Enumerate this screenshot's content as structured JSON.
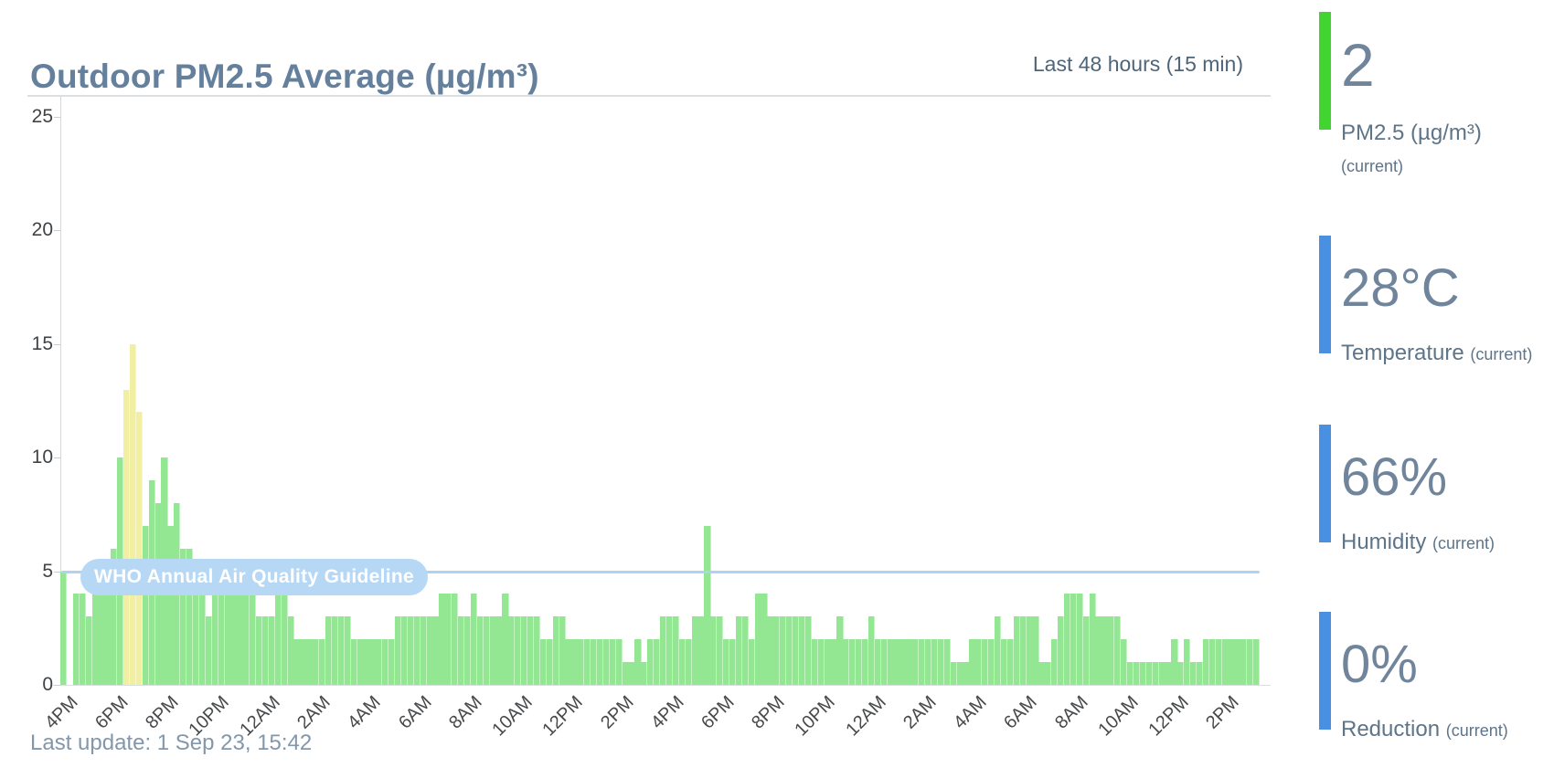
{
  "header": {
    "title": "Outdoor PM2.5 Average (µg/m³)",
    "range_label": "Last 48 hours (15 min)"
  },
  "footer": {
    "last_update": "Last update: 1 Sep 23, 15:42"
  },
  "chart_data": {
    "type": "bar",
    "title": "Outdoor PM2.5 Average (µg/m³)",
    "subtitle": "Last 48 hours (15 min)",
    "interval_minutes": 15,
    "ylim": [
      0,
      25
    ],
    "y_ticks": [
      0,
      5,
      10,
      15,
      20,
      25
    ],
    "x_tick_labels": [
      "4PM",
      "6PM",
      "8PM",
      "10PM",
      "12AM",
      "2AM",
      "4AM",
      "6AM",
      "8AM",
      "10AM",
      "12PM",
      "2PM",
      "4PM",
      "6PM",
      "8PM",
      "10PM",
      "12AM",
      "2AM",
      "4AM",
      "6AM",
      "8AM",
      "10AM",
      "12PM",
      "2PM"
    ],
    "guideline": {
      "label": "WHO Annual Air Quality Guideline",
      "value": 5
    },
    "colors": {
      "bar_green": "#93e793",
      "bar_yellow": "#f1efa2",
      "guideline_blue": "#aed3f2",
      "yellow_above": 10
    },
    "values": [
      5,
      0,
      4,
      4,
      3,
      4,
      4,
      4,
      6,
      10,
      13,
      15,
      12,
      7,
      9,
      8,
      10,
      7,
      8,
      6,
      6,
      4,
      4,
      3,
      4,
      4,
      4,
      4,
      4,
      4,
      4,
      3,
      3,
      3,
      4,
      4,
      3,
      2,
      2,
      2,
      2,
      2,
      3,
      3,
      3,
      3,
      2,
      2,
      2,
      2,
      2,
      2,
      2,
      3,
      3,
      3,
      3,
      3,
      3,
      3,
      4,
      4,
      4,
      3,
      3,
      4,
      3,
      3,
      3,
      3,
      4,
      3,
      3,
      3,
      3,
      3,
      2,
      2,
      3,
      3,
      2,
      2,
      2,
      2,
      2,
      2,
      2,
      2,
      2,
      1,
      1,
      2,
      1,
      2,
      2,
      3,
      3,
      3,
      2,
      2,
      3,
      3,
      7,
      3,
      3,
      2,
      2,
      3,
      3,
      2,
      4,
      4,
      3,
      3,
      3,
      3,
      3,
      3,
      3,
      2,
      2,
      2,
      2,
      3,
      2,
      2,
      2,
      2,
      3,
      2,
      2,
      2,
      2,
      2,
      2,
      2,
      2,
      2,
      2,
      2,
      2,
      1,
      1,
      1,
      2,
      2,
      2,
      2,
      3,
      2,
      2,
      3,
      3,
      3,
      3,
      1,
      1,
      2,
      3,
      4,
      4,
      4,
      3,
      4,
      3,
      3,
      3,
      3,
      2,
      1,
      1,
      1,
      1,
      1,
      1,
      1,
      2,
      1,
      2,
      1,
      1,
      2,
      2,
      2,
      2,
      2,
      2,
      2,
      2,
      2
    ]
  },
  "sidebar": {
    "stats": [
      {
        "value": "2",
        "label": "PM2.5 (µg/m³)",
        "sublabel": "(current)",
        "accent": "#42d532"
      },
      {
        "value": "28°C",
        "label": "Temperature",
        "sublabel": "(current)",
        "accent": "#4a90e2"
      },
      {
        "value": "66%",
        "label": "Humidity",
        "sublabel": "(current)",
        "accent": "#4a90e2"
      },
      {
        "value": "0%",
        "label": "Reduction",
        "sublabel": "(current)",
        "accent": "#4a90e2"
      }
    ]
  }
}
